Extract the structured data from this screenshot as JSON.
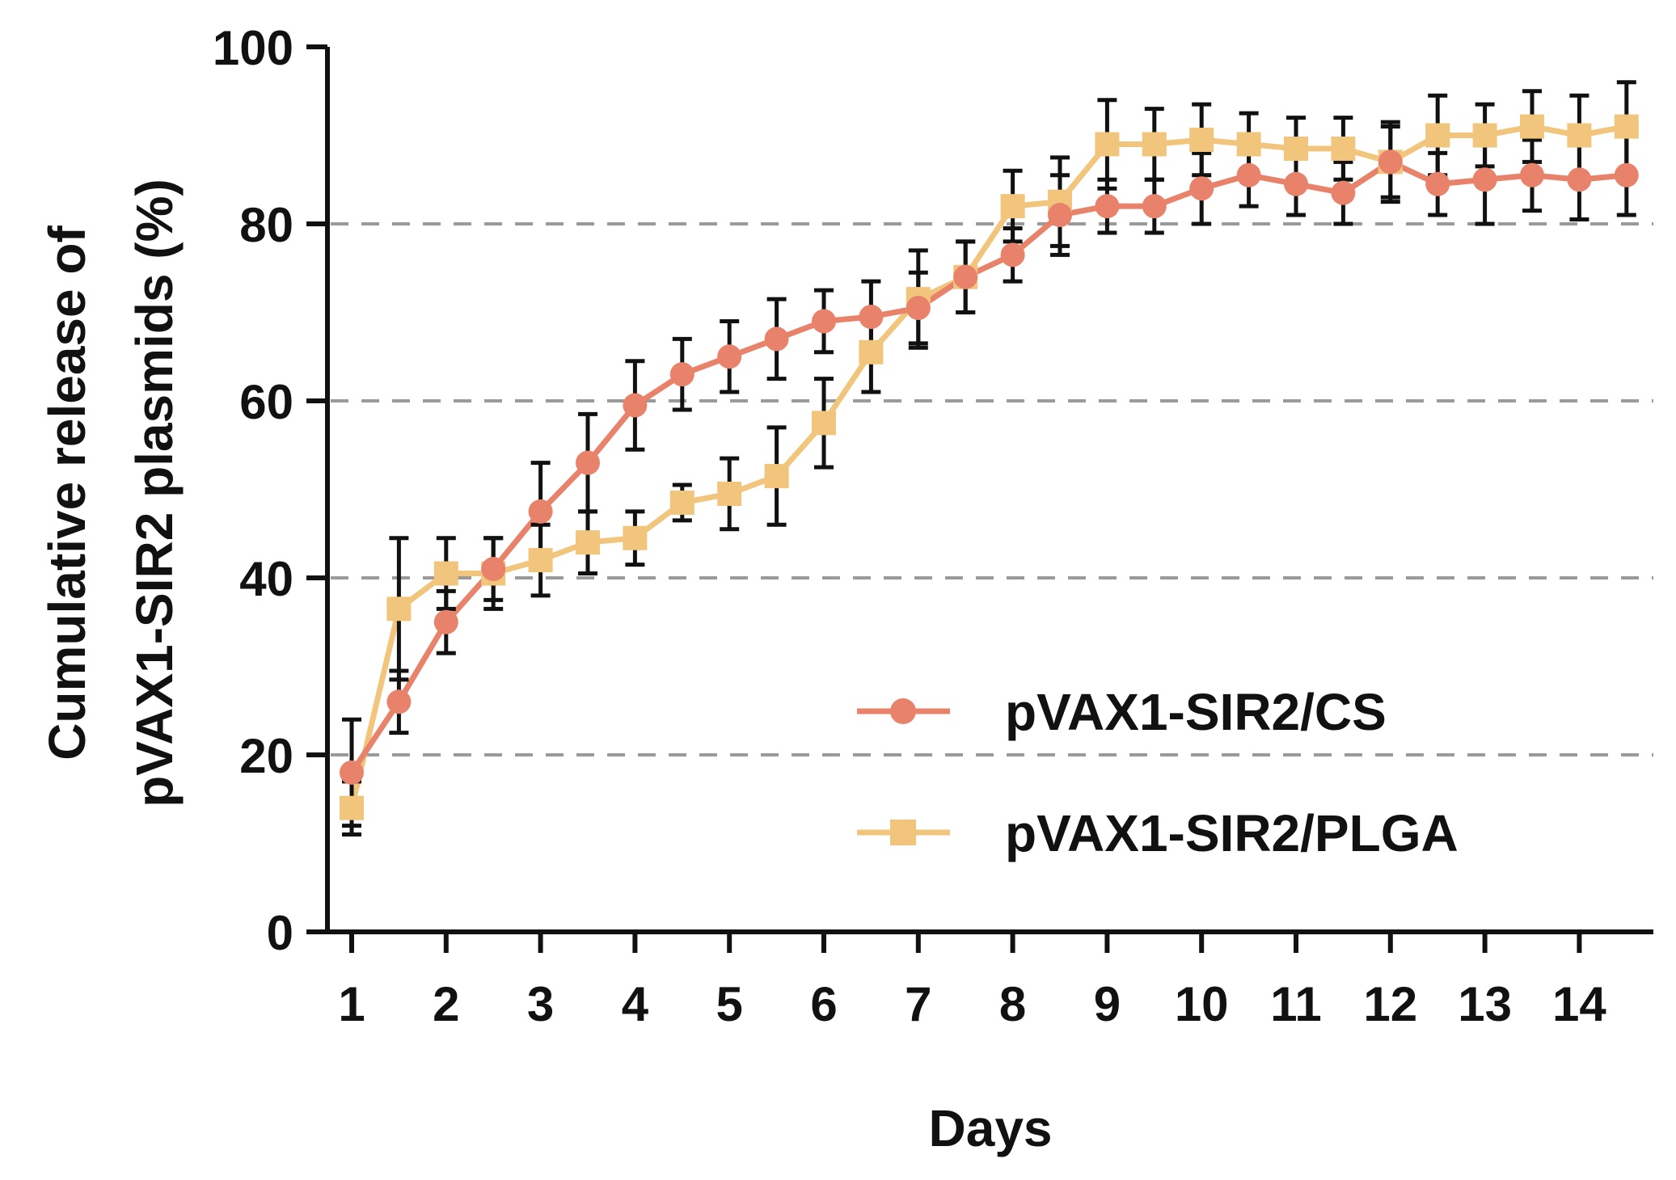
{
  "chart_data": {
    "type": "line",
    "title": "",
    "xlabel": "Days",
    "ylabel_lines": [
      "Cumulative release of",
      "pVAX1-SIR2 plasmids (%)"
    ],
    "xlim": [
      0.8,
      14.7
    ],
    "ylim": [
      0,
      100
    ],
    "x_ticks": [
      1,
      2,
      3,
      4,
      5,
      6,
      7,
      8,
      9,
      10,
      11,
      12,
      13,
      14
    ],
    "y_ticks": [
      0,
      20,
      40,
      60,
      80,
      100
    ],
    "gridlines": [
      20,
      40,
      60,
      80
    ],
    "legend_position": "lower-right",
    "series": [
      {
        "name": "pVAX1-SIR2/CS",
        "color": "#e8826a",
        "marker": "circle",
        "x": [
          1,
          1.5,
          2,
          2.5,
          3,
          3.5,
          4,
          4.5,
          5,
          5.5,
          6,
          6.5,
          7,
          7.5,
          8,
          8.5,
          9,
          9.5,
          10,
          10.5,
          11,
          11.5,
          12,
          12.5,
          13,
          13.5,
          14,
          14.5
        ],
        "y": [
          18,
          26,
          35,
          41,
          47.5,
          53,
          59.5,
          63,
          65,
          67,
          69,
          69.5,
          70.5,
          74,
          76.5,
          81,
          82,
          82,
          84,
          85.5,
          84.5,
          83.5,
          87,
          84.5,
          85,
          85.5,
          85,
          85.5
        ],
        "err": [
          6,
          3.5,
          3.5,
          3.5,
          5.5,
          5.5,
          5,
          4,
          4,
          4.5,
          3.5,
          4,
          4,
          4,
          3,
          4.5,
          3,
          3,
          4,
          3.5,
          3.5,
          3.5,
          4.5,
          3.5,
          5,
          4,
          4.5,
          4.5
        ]
      },
      {
        "name": "pVAX1-SIR2/PLGA",
        "color": "#f2c57d",
        "marker": "square",
        "x": [
          1,
          1.5,
          2,
          2.5,
          3,
          3.5,
          4,
          4.5,
          5,
          5.5,
          6,
          6.5,
          7,
          7.5,
          8,
          8.5,
          9,
          9.5,
          10,
          10.5,
          11,
          11.5,
          12,
          12.5,
          13,
          13.5,
          14,
          14.5
        ],
        "y": [
          14,
          36.5,
          40.5,
          40.5,
          42,
          44,
          44.5,
          48.5,
          49.5,
          51.5,
          57.5,
          65.5,
          71.5,
          74,
          82,
          82.5,
          89,
          89,
          89.5,
          89,
          88.5,
          88.5,
          87,
          90,
          90,
          91,
          90,
          91
        ],
        "err": [
          3,
          8,
          4,
          4,
          4,
          3.5,
          3,
          2,
          4,
          5.5,
          5,
          4.5,
          5.5,
          4,
          4,
          5,
          5,
          4,
          4,
          3.5,
          3.5,
          3.5,
          4,
          4.5,
          3.5,
          4,
          4.5,
          5
        ]
      }
    ]
  }
}
